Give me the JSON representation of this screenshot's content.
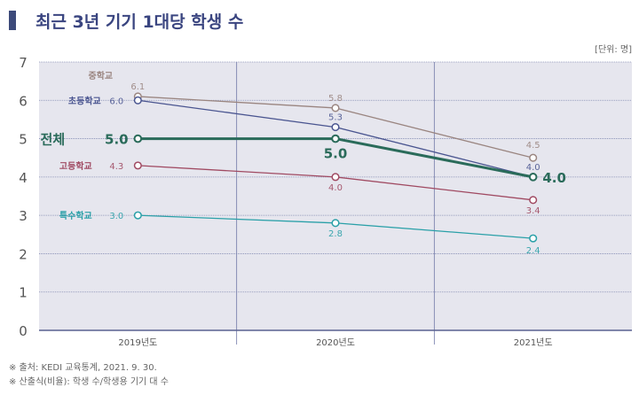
{
  "title": "최근 3년 기기 1대당 학생 수",
  "unit": "[단위: 명]",
  "notes": [
    "※ 출처: KEDI 교육통계, 2021. 9. 30.",
    "※ 산출식(비율): 학생 수/학생용 기기 대 수"
  ],
  "chart_data": {
    "type": "line",
    "title": "최근 3년 기기 1대당 학생 수",
    "categories": [
      "2019년도",
      "2020년도",
      "2021년도"
    ],
    "ylim": [
      0,
      7
    ],
    "yticks": [
      0,
      1,
      2,
      3,
      4,
      5,
      6,
      7
    ],
    "grid": true,
    "series": [
      {
        "name": "중학교",
        "values": [
          6.1,
          5.8,
          4.5
        ],
        "color": "#9a8580"
      },
      {
        "name": "초등학교",
        "values": [
          6.0,
          5.3,
          4.0
        ],
        "color": "#4a5590"
      },
      {
        "name": "고등학교",
        "values": [
          4.3,
          4.0,
          3.4
        ],
        "color": "#a04a62"
      },
      {
        "name": "특수학교",
        "values": [
          3.0,
          2.8,
          2.4
        ],
        "color": "#2aa0a8"
      },
      {
        "name": "전체",
        "values": [
          5.0,
          5.0,
          4.0
        ],
        "color": "#2a6b5a",
        "bold": true
      }
    ],
    "plot_background": "#e6e6ee"
  }
}
